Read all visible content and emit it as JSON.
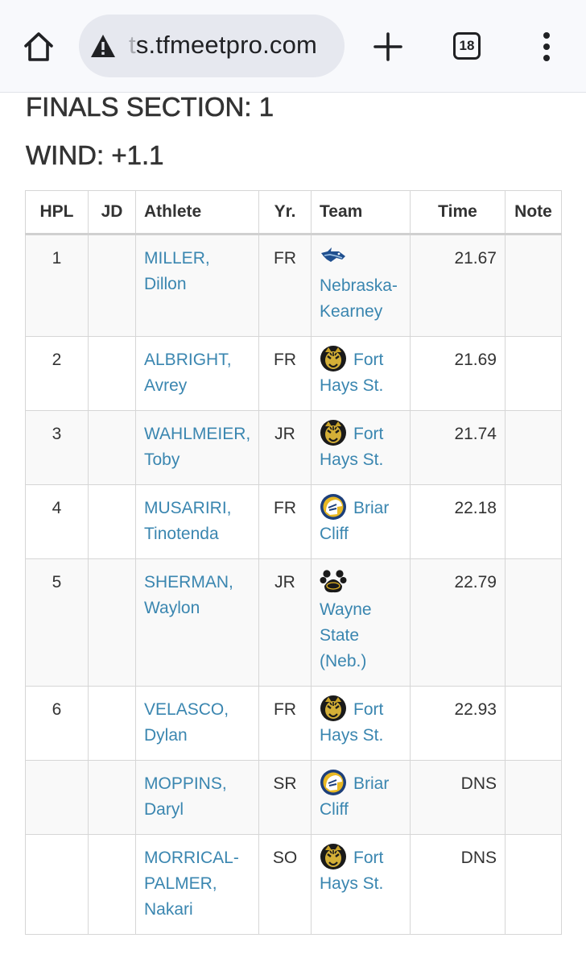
{
  "browser": {
    "url_faded": "t",
    "url_main": "s.tfmeetpro.com",
    "tab_count": "18",
    "icons": [
      "home-icon",
      "warning-icon",
      "plus-icon",
      "tabs-icon",
      "more-vert-icon"
    ]
  },
  "page": {
    "section_heading": "FINALS SECTION: 1",
    "wind_heading": "WIND: +1.1"
  },
  "table": {
    "headers": {
      "hpl": "HPL",
      "jd": "JD",
      "athlete": "Athlete",
      "yr": "Yr.",
      "team": "Team",
      "time": "Time",
      "note": "Note"
    },
    "rows": [
      {
        "hpl": "1",
        "jd": "",
        "last": "MILLER,",
        "first": "Dillon",
        "yr": "FR",
        "team": "Nebraska-Kearney",
        "logo": "unk-loper-logo",
        "time": "21.67",
        "note": ""
      },
      {
        "hpl": "2",
        "jd": "",
        "last": "ALBRIGHT,",
        "first": "Avrey",
        "yr": "FR",
        "team": "Fort Hays St.",
        "logo": "fort-hays-tiger-logo",
        "time": "21.69",
        "note": ""
      },
      {
        "hpl": "3",
        "jd": "",
        "last": "WAHLMEIER,",
        "first": "Toby",
        "yr": "JR",
        "team": "Fort Hays St.",
        "logo": "fort-hays-tiger-logo",
        "time": "21.74",
        "note": ""
      },
      {
        "hpl": "4",
        "jd": "",
        "last": "MUSARIRI,",
        "first": "Tinotenda",
        "yr": "FR",
        "team": "Briar Cliff",
        "logo": "briar-cliff-charger-logo",
        "time": "22.18",
        "note": ""
      },
      {
        "hpl": "5",
        "jd": "",
        "last": "SHERMAN,",
        "first": "Waylon",
        "yr": "JR",
        "team": "Wayne State (Neb.)",
        "logo": "wayne-state-paw-logo",
        "time": "22.79",
        "note": ""
      },
      {
        "hpl": "6",
        "jd": "",
        "last": "VELASCO,",
        "first": "Dylan",
        "yr": "FR",
        "team": "Fort Hays St.",
        "logo": "fort-hays-tiger-logo",
        "time": "22.93",
        "note": ""
      },
      {
        "hpl": "",
        "jd": "",
        "last": "MOPPINS,",
        "first": "Daryl",
        "yr": "SR",
        "team": "Briar Cliff",
        "logo": "briar-cliff-charger-logo",
        "time": "DNS",
        "note": ""
      },
      {
        "hpl": "",
        "jd": "",
        "last": "MORRICAL-PALMER,",
        "first": "Nakari",
        "yr": "SO",
        "team": "Fort Hays St.",
        "logo": "fort-hays-tiger-logo",
        "time": "DNS",
        "note": ""
      }
    ]
  },
  "colors": {
    "link": "#3a86b0",
    "heading": "#333333",
    "browser_bar": "#f8f9fc",
    "url_pill": "#e6e8ef"
  }
}
